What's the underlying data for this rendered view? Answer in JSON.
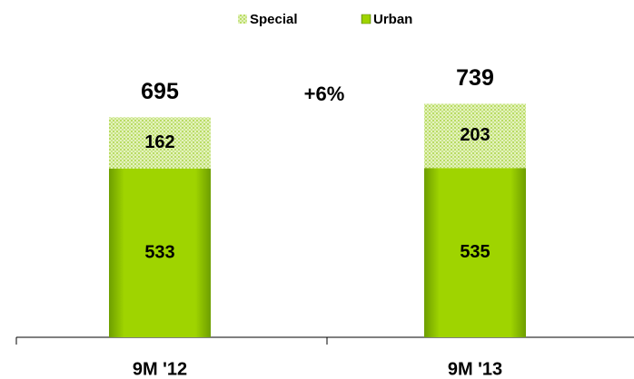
{
  "chart_data": {
    "type": "stacked_bar",
    "categories": [
      "9M '12",
      "9M '13"
    ],
    "series": [
      {
        "name": "Urban",
        "color": "#8fc800",
        "values": [
          533,
          535
        ]
      },
      {
        "name": "Special",
        "color": "#d6eca0",
        "values": [
          162,
          203
        ]
      }
    ],
    "totals": [
      695,
      739
    ],
    "annotation": "+6%"
  }
}
